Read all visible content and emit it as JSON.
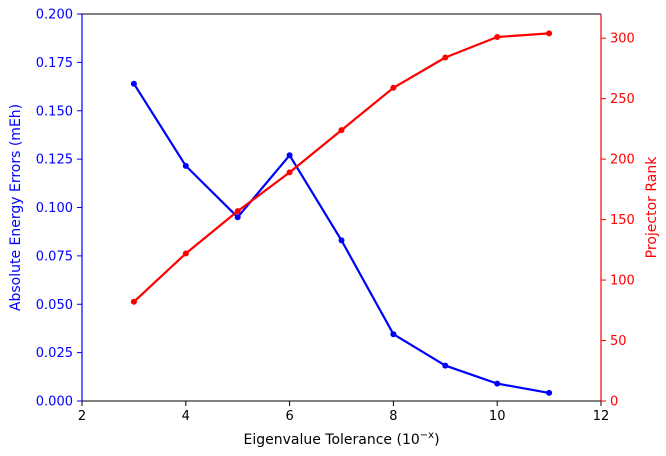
{
  "chart_data": {
    "type": "line",
    "title": "",
    "xlabel": "Eigenvalue Tolerance (10",
    "xlabel_superscript": "−x",
    "xlabel_suffix": ")",
    "ylabel_left": "Absolute Energy Errors (mEh)",
    "ylabel_right": "Projector Rank",
    "xlim": [
      2,
      12
    ],
    "ylim_left": [
      0,
      0.2
    ],
    "ylim_right": [
      0,
      320
    ],
    "x_ticks": [
      2,
      4,
      6,
      8,
      10,
      12
    ],
    "x_tick_labels": [
      "2",
      "4",
      "6",
      "8",
      "10",
      "12"
    ],
    "y_left_ticks": [
      0,
      0.025,
      0.05,
      0.075,
      0.1,
      0.125,
      0.15,
      0.175,
      0.2
    ],
    "y_left_tick_labels": [
      "0.000",
      "0.025",
      "0.050",
      "0.075",
      "0.100",
      "0.125",
      "0.150",
      "0.175",
      "0.200"
    ],
    "y_right_ticks": [
      0,
      50,
      100,
      150,
      200,
      250,
      300
    ],
    "y_right_tick_labels": [
      "0",
      "50",
      "100",
      "150",
      "200",
      "250",
      "300"
    ],
    "grid": false,
    "series": [
      {
        "axis": "left",
        "color": "#0000ff",
        "x": [
          3,
          4,
          5,
          6,
          7,
          8,
          9,
          10,
          11
        ],
        "values": [
          0.164,
          0.1215,
          0.095,
          0.127,
          0.083,
          0.0345,
          0.0183,
          0.009,
          0.0042
        ]
      },
      {
        "axis": "right",
        "color": "#ff0000",
        "x": [
          3,
          4,
          5,
          6,
          7,
          8,
          9,
          10,
          11
        ],
        "values": [
          82,
          122,
          157,
          189,
          224,
          259,
          284,
          301,
          304
        ]
      }
    ]
  }
}
